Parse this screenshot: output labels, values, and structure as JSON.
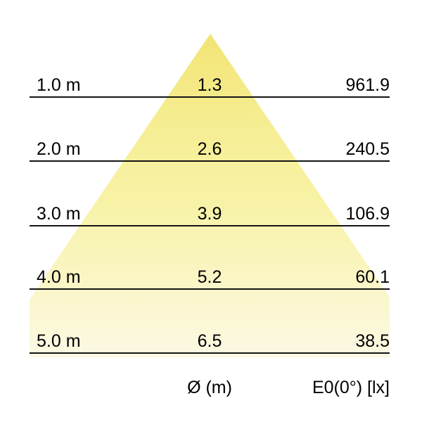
{
  "colors": {
    "background": "#ffffff",
    "line": "#141414",
    "text": "#000000",
    "cone_top": "#f2e474",
    "cone_mid": "#f8f2a6",
    "cone_bottom": "#fcf9e4"
  },
  "rows": [
    {
      "distance": "1.0 m",
      "diameter": "1.3",
      "illuminance": "961.9"
    },
    {
      "distance": "2.0 m",
      "diameter": "2.6",
      "illuminance": "240.5"
    },
    {
      "distance": "3.0 m",
      "diameter": "3.9",
      "illuminance": "106.9"
    },
    {
      "distance": "4.0 m",
      "diameter": "5.2",
      "illuminance": "60.1"
    },
    {
      "distance": "5.0 m",
      "diameter": "6.5",
      "illuminance": "38.5"
    }
  ],
  "footer": {
    "diameter_label": "Ø (m)",
    "illuminance_label": "E0(0°) [lx]"
  },
  "chart_data": {
    "type": "table",
    "categories": [
      "1.0 m",
      "2.0 m",
      "3.0 m",
      "4.0 m",
      "5.0 m"
    ],
    "series": [
      {
        "name": "Ø (m)",
        "values": [
          1.3,
          2.6,
          3.9,
          5.2,
          6.5
        ]
      },
      {
        "name": "E0(0°) [lx]",
        "values": [
          961.9,
          240.5,
          106.9,
          60.1,
          38.5
        ]
      }
    ],
    "distance_axis_range_m": [
      1.0,
      5.0
    ],
    "legend_position": "bottom",
    "grid": "horizontal lines at each distance"
  }
}
